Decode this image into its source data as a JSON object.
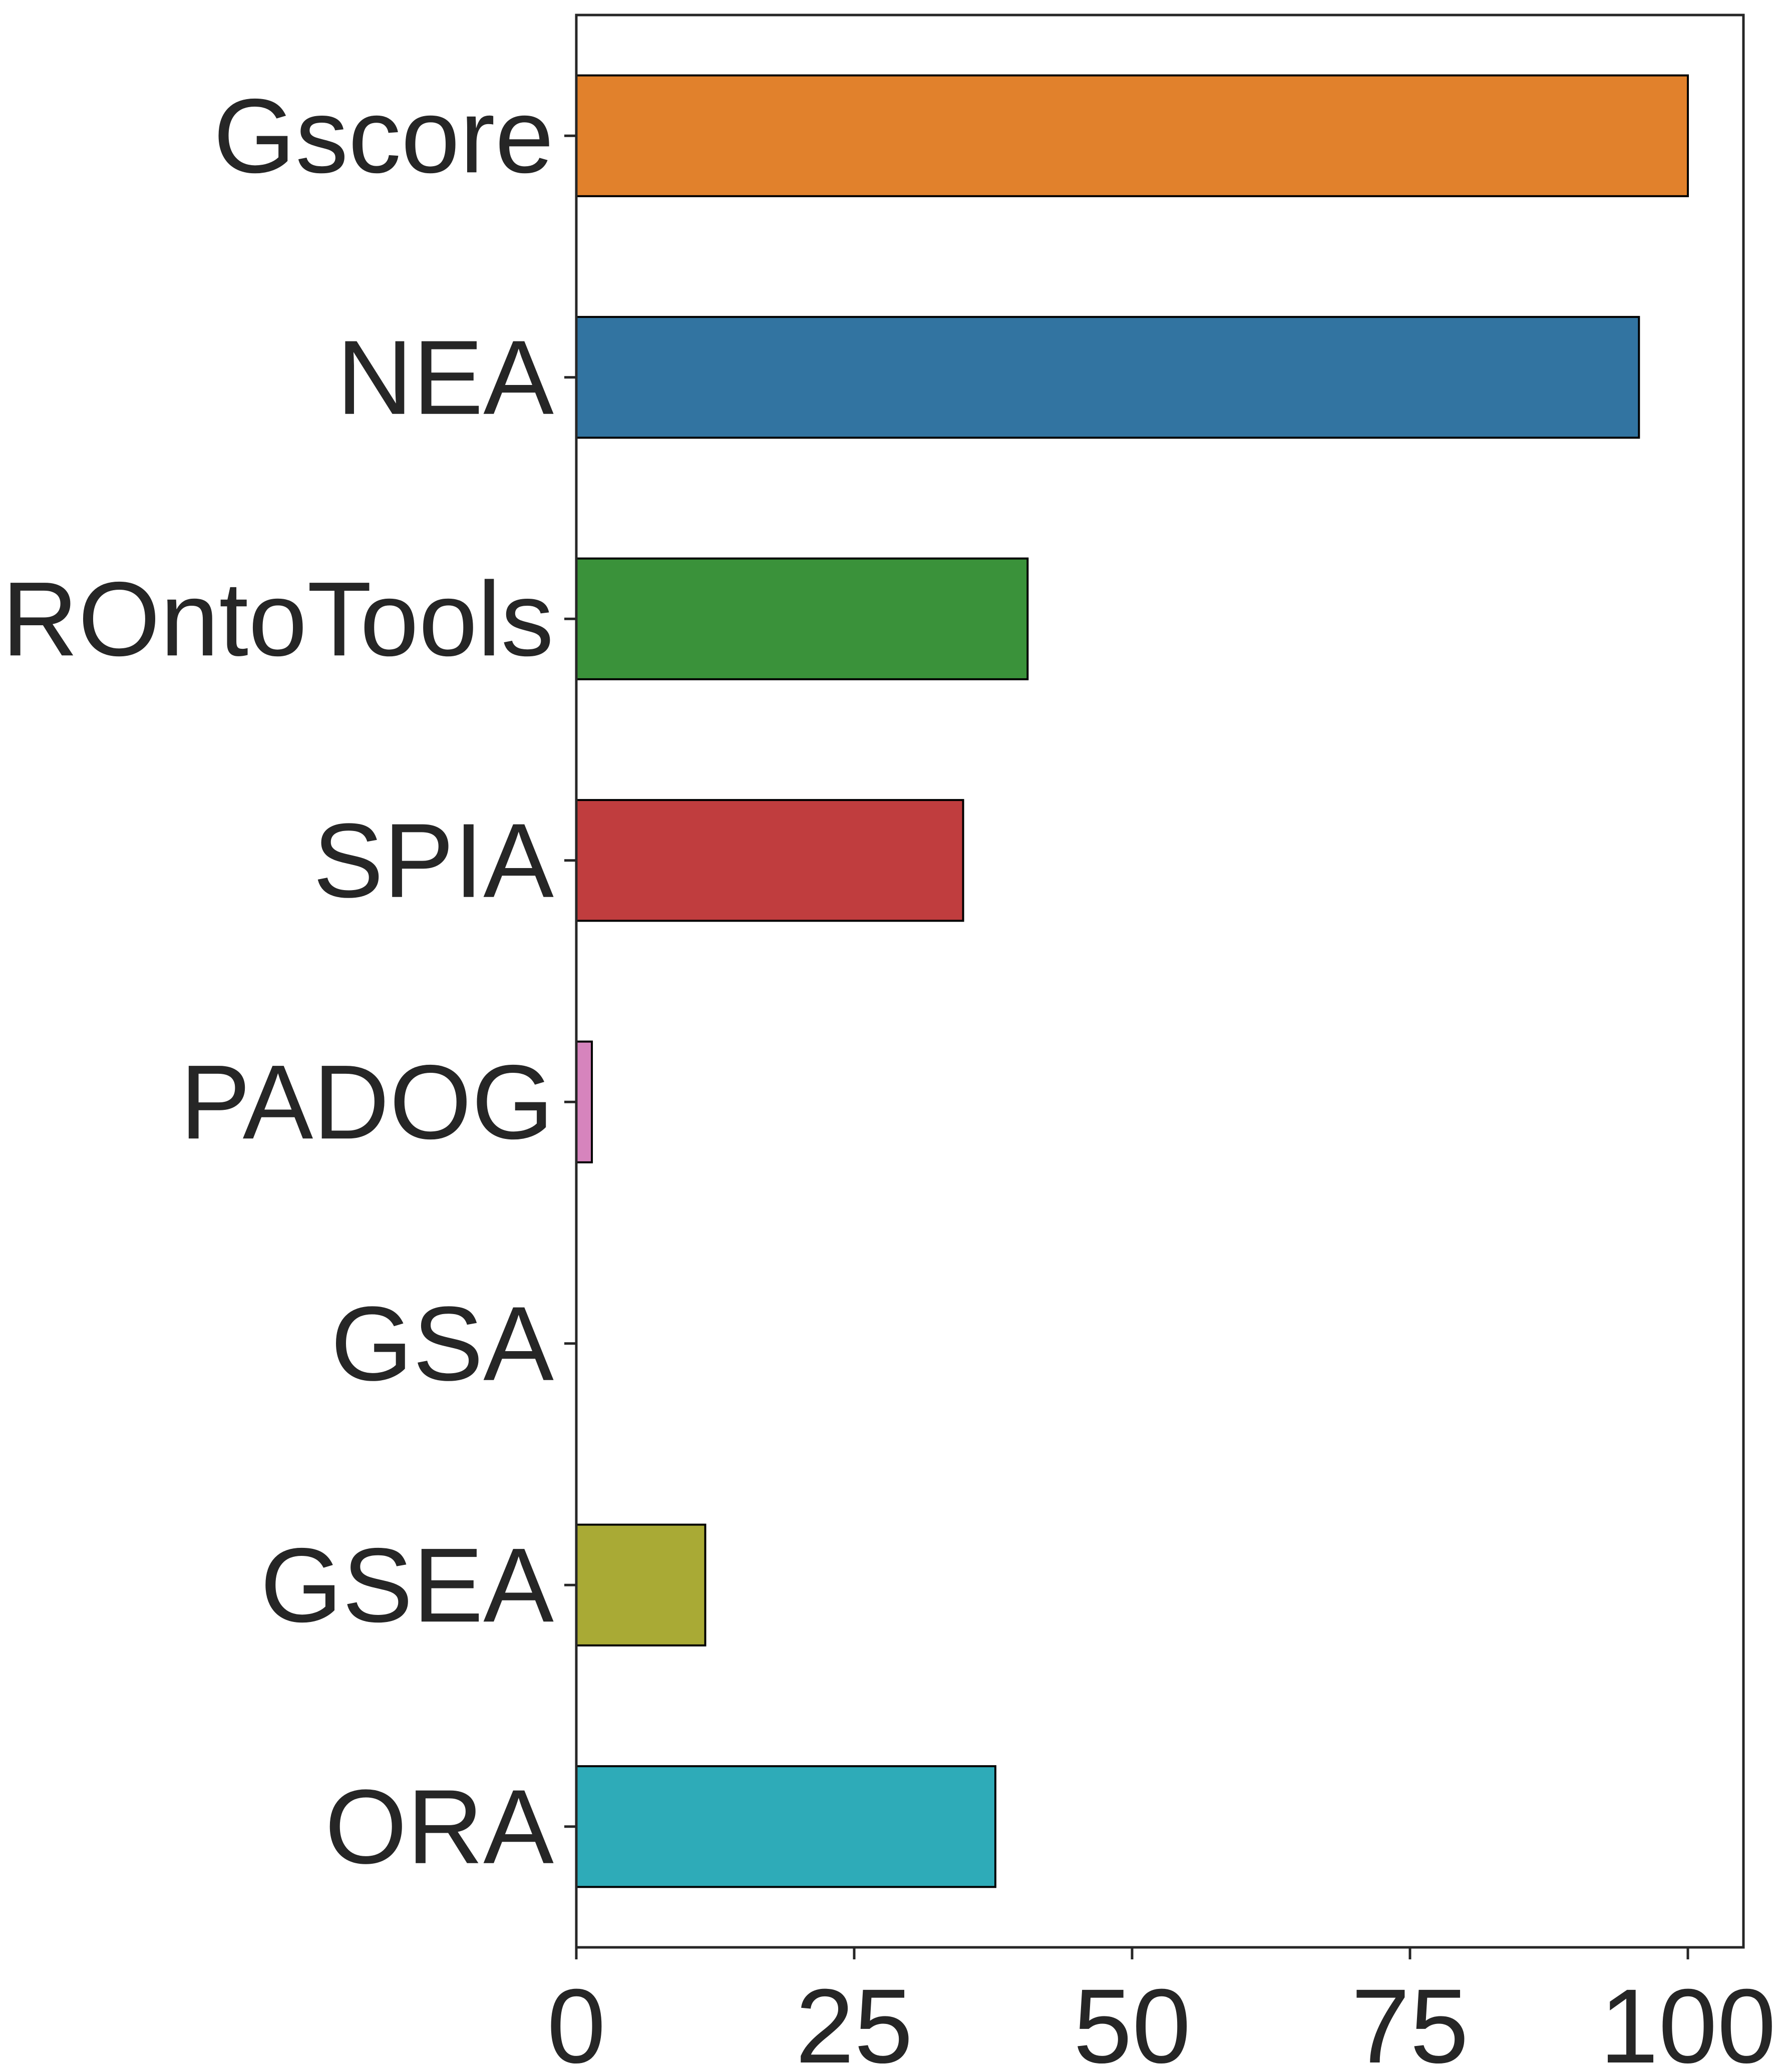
{
  "chart_data": {
    "type": "bar",
    "orientation": "horizontal",
    "title": "",
    "xlabel": "",
    "ylabel": "",
    "categories": [
      "Gscore",
      "NEA",
      "ROntoTools",
      "SPIA",
      "PADOG",
      "GSA",
      "GSEA",
      "ORA"
    ],
    "values": [
      100,
      95.6,
      40.6,
      34.8,
      1.4,
      0,
      11.6,
      37.7
    ],
    "colors": [
      "#e1812c",
      "#3274a1",
      "#3a923a",
      "#c03d3e",
      "#d684bd",
      "#7f7f7f",
      "#a9aa35",
      "#2eabb8"
    ],
    "xlim": [
      0,
      105
    ],
    "xticks": [
      0,
      25,
      50,
      75,
      100
    ],
    "grid": false,
    "legend": "none"
  }
}
